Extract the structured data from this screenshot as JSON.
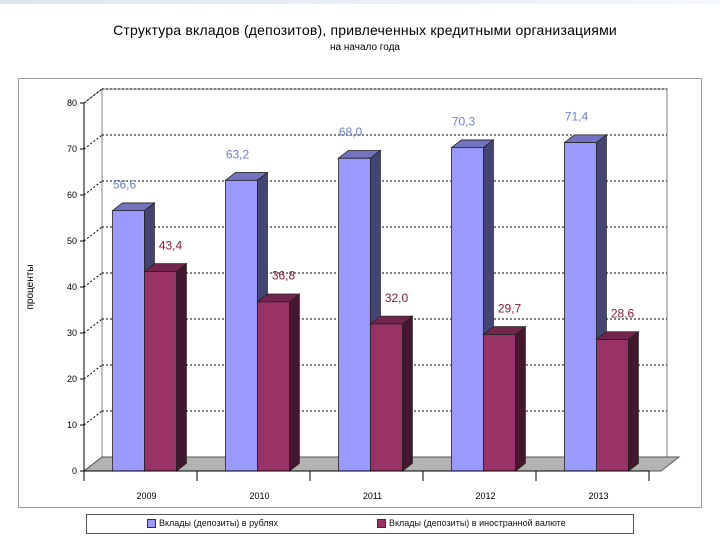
{
  "chart_data": {
    "type": "bar",
    "title": "Структура вкладов (депозитов), привлеченных кредитными организациями",
    "subtitle": "на начало года",
    "xlabel": "",
    "ylabel": "проценты",
    "categories": [
      "2009",
      "2010",
      "2011",
      "2012",
      "2013"
    ],
    "series": [
      {
        "name": "Вклады (депозиты) в рублях",
        "values": [
          56.6,
          63.2,
          68.0,
          70.3,
          71.4
        ],
        "labels": [
          "56,6",
          "63,2",
          "68,0",
          "70,3",
          "71,4"
        ],
        "color": "#9999ff"
      },
      {
        "name": "Вклады (депозиты) в иностранной валюте",
        "values": [
          43.4,
          36.8,
          32.0,
          29.7,
          28.6
        ],
        "labels": [
          "43,4",
          "36,8",
          "32,0",
          "29,7",
          "28,6"
        ],
        "color": "#993366"
      }
    ],
    "ylim": [
      0,
      80
    ],
    "yticks": [
      0,
      10,
      20,
      30,
      40,
      50,
      60,
      70,
      80
    ],
    "grid": true,
    "legend_position": "bottom",
    "style": "3d-clustered-column"
  }
}
